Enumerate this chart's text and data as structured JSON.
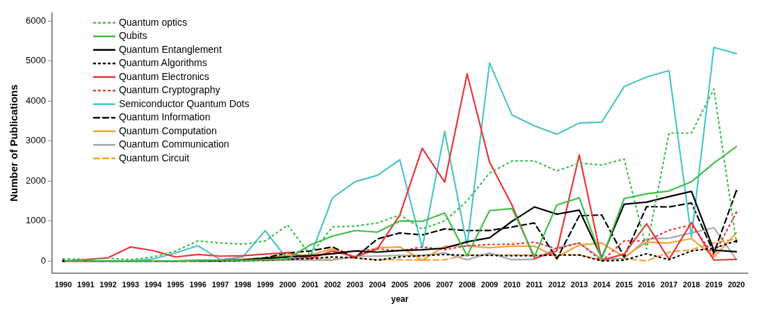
{
  "chart_data": {
    "type": "line",
    "xlabel": "year",
    "ylabel": "Number of Publications",
    "categories": [
      "1990",
      "1991",
      "1992",
      "1993",
      "1994",
      "1995",
      "1996",
      "1997",
      "1998",
      "1999",
      "2000",
      "2001",
      "2002",
      "2003",
      "2004",
      "2005",
      "2006",
      "2007",
      "2008",
      "2009",
      "2010",
      "2011",
      "2012",
      "2013",
      "2014",
      "2015",
      "2016",
      "2017",
      "2018",
      "2019",
      "2020"
    ],
    "ylim": [
      -300,
      6200
    ],
    "yticks": [
      0,
      1000,
      2000,
      3000,
      4000,
      5000,
      6000
    ],
    "grid": false,
    "legend": "top left",
    "marker": "none",
    "series": [
      {
        "name": "Quantum optics",
        "color": "#3dbf4a",
        "line_style": "dotted",
        "values": [
          50,
          40,
          70,
          30,
          100,
          250,
          500,
          450,
          420,
          500,
          900,
          150,
          850,
          870,
          950,
          1150,
          800,
          1000,
          1500,
          2200,
          2500,
          2500,
          2250,
          2450,
          2400,
          2550,
          300,
          3200,
          3200,
          4300,
          470
        ]
      },
      {
        "name": "Qubits",
        "color": "#3dbf4a",
        "line_style": "solid",
        "values": [
          0,
          0,
          0,
          0,
          0,
          0,
          10,
          20,
          20,
          30,
          50,
          400,
          620,
          760,
          720,
          1000,
          990,
          1200,
          130,
          1260,
          1310,
          110,
          1400,
          1580,
          50,
          1560,
          1680,
          1750,
          1980,
          2450,
          2860
        ]
      },
      {
        "name": "Quantum Entanglement",
        "color": "#000000",
        "line_style": "solid",
        "values": [
          0,
          0,
          0,
          0,
          0,
          0,
          10,
          20,
          30,
          60,
          100,
          130,
          180,
          250,
          220,
          260,
          280,
          320,
          480,
          580,
          990,
          1350,
          1170,
          1270,
          80,
          1420,
          1470,
          1610,
          1740,
          270,
          230
        ]
      },
      {
        "name": "Quantum Algorithms",
        "color": "#000000",
        "line_style": "dotted",
        "values": [
          0,
          0,
          0,
          0,
          0,
          0,
          0,
          0,
          10,
          20,
          40,
          60,
          100,
          80,
          20,
          100,
          130,
          160,
          140,
          140,
          130,
          130,
          150,
          150,
          0,
          20,
          180,
          30,
          250,
          320,
          500
        ]
      },
      {
        "name": "Quantum Electronics",
        "color": "#ee3338",
        "line_style": "solid",
        "values": [
          0,
          30,
          80,
          350,
          260,
          100,
          160,
          120,
          130,
          170,
          210,
          60,
          250,
          100,
          300,
          1150,
          2820,
          1970,
          4680,
          2470,
          1400,
          60,
          250,
          2650,
          20,
          170,
          930,
          40,
          960,
          20,
          40
        ]
      },
      {
        "name": "Quantum Cryptography",
        "color": "#ee3338",
        "line_style": "dotted",
        "values": [
          null,
          0,
          0,
          0,
          0,
          0,
          0,
          0,
          10,
          20,
          50,
          100,
          200,
          250,
          300,
          250,
          350,
          280,
          380,
          410,
          420,
          470,
          300,
          450,
          0,
          500,
          500,
          770,
          900,
          150,
          1210
        ]
      },
      {
        "name": "Semiconductor Quantum Dots",
        "color": "#4cc4c8",
        "line_style": "solid",
        "values": [
          null,
          null,
          0,
          0,
          50,
          200,
          380,
          30,
          100,
          760,
          30,
          100,
          1580,
          1980,
          2140,
          2530,
          330,
          3240,
          380,
          4950,
          3650,
          3380,
          3170,
          3450,
          3470,
          4360,
          4600,
          4760,
          600,
          5340,
          5190
        ]
      },
      {
        "name": "Quantum Information",
        "color": "#000000",
        "line_style": "dashed",
        "values": [
          0,
          0,
          0,
          0,
          0,
          0,
          0,
          0,
          20,
          80,
          200,
          250,
          350,
          80,
          550,
          700,
          650,
          800,
          760,
          760,
          850,
          950,
          50,
          1130,
          1150,
          100,
          1360,
          1350,
          1450,
          200,
          1750
        ]
      },
      {
        "name": "Quantum Computation",
        "color": "#f7a035",
        "line_style": "solid",
        "values": [
          null,
          null,
          null,
          null,
          null,
          null,
          null,
          20,
          40,
          80,
          150,
          150,
          300,
          100,
          330,
          350,
          20,
          370,
          370,
          330,
          370,
          370,
          100,
          400,
          450,
          100,
          470,
          450,
          560,
          100,
          700
        ]
      },
      {
        "name": "Quantum Communication",
        "color": "#a8a8a8",
        "line_style": "solid",
        "values": [
          0,
          0,
          0,
          0,
          0,
          0,
          0,
          0,
          10,
          20,
          30,
          20,
          20,
          120,
          120,
          140,
          140,
          200,
          30,
          200,
          30,
          40,
          330,
          450,
          50,
          60,
          550,
          570,
          700,
          830,
          40
        ]
      },
      {
        "name": "Quantum Circuit",
        "color": "#f7a035",
        "line_style": "dashed",
        "values": [
          null,
          null,
          null,
          null,
          0,
          0,
          0,
          0,
          0,
          10,
          20,
          40,
          50,
          80,
          30,
          30,
          20,
          30,
          150,
          150,
          150,
          150,
          150,
          150,
          20,
          60,
          0,
          220,
          280,
          450,
          550
        ]
      }
    ]
  }
}
